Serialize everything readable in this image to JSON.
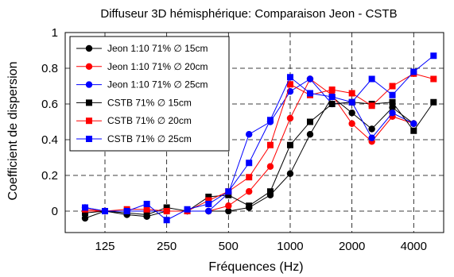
{
  "chart_data": {
    "type": "line",
    "title": "Diffuseur 3D hémisphérique: Comparaison Jeon - CSTB",
    "xlabel": "Fréquences (Hz)",
    "ylabel": "Coefficient de dispersion",
    "x_scale": "log",
    "x_tick_values": [
      125,
      250,
      500,
      1000,
      2000,
      4000
    ],
    "x_tick_labels": [
      "125",
      "250",
      "500",
      "1000",
      "2000",
      "4000"
    ],
    "y_tick_values": [
      0,
      0.2,
      0.4,
      0.6,
      0.8,
      1
    ],
    "y_tick_labels": [
      "0",
      "0.2",
      "0.4",
      "0.6",
      "0.8",
      "1"
    ],
    "xlim": [
      80,
      5600
    ],
    "ylim": [
      -0.12,
      1.0
    ],
    "grid": true,
    "legend_position": "top-left",
    "x": [
      100,
      125,
      160,
      200,
      250,
      315,
      400,
      500,
      630,
      800,
      1000,
      1250,
      1600,
      2000,
      2500,
      3150,
      4000,
      5000
    ],
    "series": [
      {
        "name": "Jeon 1:10 71% ∅ 15cm",
        "color": "#000000",
        "marker": "circle",
        "values": [
          -0.04,
          0.0,
          -0.02,
          -0.03,
          0.0,
          0.0,
          0.0,
          0.0,
          0.02,
          0.09,
          0.21,
          0.43,
          0.64,
          0.55,
          0.46,
          0.58,
          0.49,
          null
        ]
      },
      {
        "name": "Jeon 1:10 71% ∅ 20cm",
        "color": "#ff0000",
        "marker": "circle",
        "values": [
          0.0,
          0.0,
          0.0,
          0.0,
          0.0,
          0.0,
          0.0,
          0.03,
          0.11,
          0.25,
          0.52,
          0.74,
          0.65,
          0.49,
          0.39,
          0.53,
          0.49,
          null
        ]
      },
      {
        "name": "Jeon 1:10 71% ∅ 25cm",
        "color": "#0000ff",
        "marker": "circle",
        "values": [
          0.02,
          0.0,
          0.0,
          0.0,
          0.0,
          0.0,
          0.0,
          0.1,
          0.43,
          0.5,
          0.67,
          0.74,
          0.6,
          0.61,
          0.41,
          0.55,
          0.49,
          null
        ]
      },
      {
        "name": "CSTB 71% ∅ 15cm",
        "color": "#000000",
        "marker": "square",
        "values": [
          -0.01,
          0.0,
          -0.01,
          -0.02,
          0.02,
          0.0,
          0.08,
          0.09,
          0.03,
          0.11,
          0.37,
          0.5,
          0.6,
          0.61,
          0.6,
          0.61,
          0.45,
          0.61
        ]
      },
      {
        "name": "CSTB 71% ∅ 20cm",
        "color": "#ff0000",
        "marker": "square",
        "values": [
          0.01,
          0.0,
          0.01,
          0.01,
          0.0,
          0.0,
          0.06,
          0.11,
          0.19,
          0.37,
          0.71,
          0.65,
          0.68,
          0.66,
          0.59,
          0.7,
          0.77,
          0.74
        ]
      },
      {
        "name": "CSTB 71% ∅ 25cm",
        "color": "#0000ff",
        "marker": "square",
        "values": [
          0.02,
          0.0,
          0.0,
          0.04,
          -0.05,
          0.01,
          0.04,
          0.11,
          0.27,
          0.51,
          0.75,
          0.66,
          0.64,
          0.61,
          0.74,
          0.65,
          0.78,
          0.87
        ]
      }
    ]
  }
}
